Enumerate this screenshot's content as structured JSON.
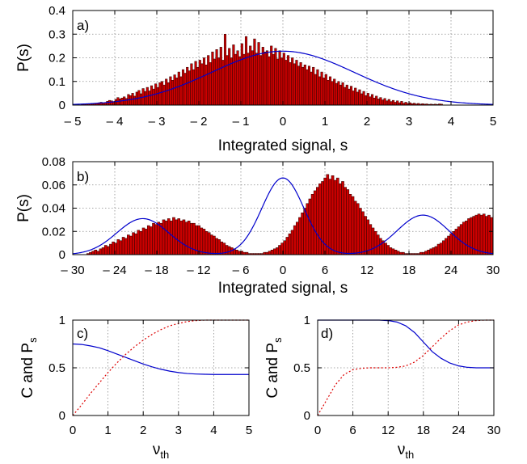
{
  "colors": {
    "bar_fill": "#cc0000",
    "bar_edge": "#2a0000",
    "fit_line": "#0000cc",
    "dotted_line": "#dd0000",
    "grid": "#8c8c8c"
  },
  "chart_data": [
    {
      "panel": "a)",
      "type": "bar",
      "xlabel": "Integrated signal, s",
      "ylabel": "P(s)",
      "xlim": [
        -5,
        5
      ],
      "ylim": [
        0,
        0.4
      ],
      "xticks": [
        -5,
        -4,
        -3,
        -2,
        -1,
        0,
        1,
        2,
        3,
        4,
        5
      ],
      "xtick_labels": [
        "– 5",
        "– 4",
        "– 3",
        "– 2",
        "– 1",
        "0",
        "1",
        "2",
        "3",
        "4",
        "5"
      ],
      "yticks": [
        0,
        0.1,
        0.2,
        0.3,
        0.4
      ],
      "ytick_labels": [
        "0",
        "0.1",
        "0.2",
        "0.3",
        "0.4"
      ],
      "grid": true,
      "bin_width": 0.05,
      "bins_start": -4.8,
      "values": [
        0.004,
        0.005,
        0.004,
        0.006,
        0.005,
        0.004,
        0.007,
        0.008,
        0.01,
        0.012,
        0.009,
        0.011,
        0.016,
        0.02,
        0.018,
        0.015,
        0.024,
        0.032,
        0.026,
        0.03,
        0.035,
        0.028,
        0.045,
        0.04,
        0.05,
        0.038,
        0.055,
        0.062,
        0.048,
        0.07,
        0.058,
        0.075,
        0.06,
        0.082,
        0.068,
        0.09,
        0.075,
        0.095,
        0.1,
        0.085,
        0.11,
        0.095,
        0.12,
        0.105,
        0.128,
        0.115,
        0.14,
        0.12,
        0.15,
        0.135,
        0.16,
        0.145,
        0.175,
        0.15,
        0.185,
        0.16,
        0.19,
        0.175,
        0.2,
        0.17,
        0.21,
        0.18,
        0.225,
        0.195,
        0.235,
        0.2,
        0.245,
        0.19,
        0.3,
        0.21,
        0.24,
        0.2,
        0.255,
        0.215,
        0.23,
        0.205,
        0.26,
        0.215,
        0.29,
        0.22,
        0.25,
        0.23,
        0.28,
        0.22,
        0.265,
        0.21,
        0.245,
        0.225,
        0.23,
        0.205,
        0.25,
        0.215,
        0.24,
        0.195,
        0.23,
        0.2,
        0.22,
        0.19,
        0.21,
        0.18,
        0.2,
        0.175,
        0.19,
        0.165,
        0.18,
        0.16,
        0.17,
        0.15,
        0.165,
        0.14,
        0.16,
        0.13,
        0.15,
        0.12,
        0.14,
        0.115,
        0.13,
        0.105,
        0.12,
        0.1,
        0.11,
        0.092,
        0.1,
        0.085,
        0.095,
        0.075,
        0.085,
        0.068,
        0.08,
        0.06,
        0.072,
        0.055,
        0.065,
        0.048,
        0.058,
        0.04,
        0.05,
        0.035,
        0.045,
        0.03,
        0.038,
        0.026,
        0.032,
        0.022,
        0.028,
        0.018,
        0.024,
        0.015,
        0.02,
        0.012,
        0.018,
        0.01,
        0.016,
        0.008,
        0.012,
        0.007,
        0.01,
        0.006,
        0.008,
        0.005,
        0.007,
        0.004,
        0.006,
        0.004,
        0.005,
        0.003,
        0.004,
        0.003,
        0.004,
        0.003,
        0.005,
        0.004
      ],
      "fit": {
        "components": [
          {
            "mu": 0,
            "sigma": 1.7,
            "amp": 0.228
          }
        ]
      }
    },
    {
      "panel": "b)",
      "type": "bar",
      "xlabel": "Integrated signal, s",
      "ylabel": "P(s)",
      "xlim": [
        -30,
        30
      ],
      "ylim": [
        0,
        0.08
      ],
      "xticks": [
        -30,
        -24,
        -18,
        -12,
        -6,
        0,
        6,
        12,
        18,
        24,
        30
      ],
      "xtick_labels": [
        "– 30",
        "– 24",
        "– 18",
        "– 12",
        "– 6",
        "0",
        "6",
        "12",
        "18",
        "24",
        "30"
      ],
      "yticks": [
        0,
        0.02,
        0.04,
        0.06,
        0.08
      ],
      "ytick_labels": [
        "0",
        "0.02",
        "0.04",
        "0.06",
        "0.08"
      ],
      "grid": true,
      "bin_width": 0.36,
      "bins_start": -28,
      "values": [
        0.001,
        0.002,
        0.003,
        0.004,
        0.003,
        0.005,
        0.006,
        0.008,
        0.007,
        0.009,
        0.011,
        0.01,
        0.013,
        0.012,
        0.015,
        0.014,
        0.017,
        0.016,
        0.019,
        0.018,
        0.021,
        0.02,
        0.023,
        0.022,
        0.025,
        0.024,
        0.027,
        0.026,
        0.028,
        0.027,
        0.03,
        0.029,
        0.031,
        0.029,
        0.032,
        0.03,
        0.031,
        0.029,
        0.03,
        0.028,
        0.029,
        0.027,
        0.027,
        0.025,
        0.025,
        0.023,
        0.022,
        0.02,
        0.019,
        0.017,
        0.016,
        0.014,
        0.013,
        0.011,
        0.01,
        0.008,
        0.007,
        0.006,
        0.005,
        0.004,
        0.003,
        0.003,
        0.002,
        0.002,
        0.001,
        0.001,
        0.001,
        0.001,
        0.001,
        0.001,
        0.002,
        0.002,
        0.003,
        0.004,
        0.005,
        0.006,
        0.008,
        0.01,
        0.012,
        0.015,
        0.018,
        0.021,
        0.025,
        0.028,
        0.032,
        0.036,
        0.04,
        0.044,
        0.048,
        0.052,
        0.055,
        0.058,
        0.061,
        0.063,
        0.066,
        0.069,
        0.065,
        0.068,
        0.064,
        0.066,
        0.061,
        0.063,
        0.058,
        0.056,
        0.052,
        0.05,
        0.046,
        0.044,
        0.04,
        0.037,
        0.033,
        0.03,
        0.026,
        0.023,
        0.02,
        0.017,
        0.014,
        0.012,
        0.01,
        0.008,
        0.006,
        0.005,
        0.004,
        0.003,
        0.002,
        0.002,
        0.001,
        0.001,
        0.001,
        0.001,
        0.001,
        0.001,
        0.002,
        0.002,
        0.003,
        0.004,
        0.005,
        0.006,
        0.007,
        0.009,
        0.01,
        0.012,
        0.014,
        0.016,
        0.018,
        0.02,
        0.022,
        0.024,
        0.026,
        0.028,
        0.029,
        0.031,
        0.032,
        0.033,
        0.034,
        0.035,
        0.034,
        0.035,
        0.033,
        0.034,
        0.032,
        0.033,
        0.031,
        0.03,
        0.029,
        0.027,
        0.026,
        0.024,
        0.022,
        0.021,
        0.019,
        0.017,
        0.015,
        0.013,
        0.011,
        0.01,
        0.008,
        0.007,
        0.005,
        0.004,
        0.003,
        0.002,
        0.002,
        0.001,
        0.001
      ],
      "fit": {
        "components": [
          {
            "mu": -20,
            "sigma": 3.7,
            "amp": 0.031
          },
          {
            "mu": 0,
            "sigma": 3.0,
            "amp": 0.066
          },
          {
            "mu": 20,
            "sigma": 3.7,
            "amp": 0.034
          }
        ]
      }
    },
    {
      "panel": "c)",
      "type": "line",
      "xlabel": "ν",
      "xlabel_sub": "th",
      "ylabel": "C and P",
      "ylabel_sub": "s",
      "xlim": [
        0,
        5
      ],
      "ylim": [
        0,
        1
      ],
      "xticks": [
        0,
        1,
        2,
        3,
        4,
        5
      ],
      "xtick_labels": [
        "0",
        "1",
        "2",
        "3",
        "4",
        "5"
      ],
      "yticks": [
        0,
        0.5,
        1
      ],
      "ytick_labels": [
        "0",
        "0.5",
        "1"
      ],
      "grid": true,
      "x": [
        0,
        0.25,
        0.5,
        0.75,
        1,
        1.25,
        1.5,
        1.75,
        2,
        2.25,
        2.5,
        2.75,
        3,
        3.25,
        3.5,
        3.75,
        4,
        4.25,
        4.5,
        4.75,
        5
      ],
      "series": [
        {
          "style": "solid",
          "color": "#0000cc",
          "values": [
            0.75,
            0.745,
            0.73,
            0.71,
            0.68,
            0.645,
            0.61,
            0.575,
            0.54,
            0.51,
            0.485,
            0.465,
            0.45,
            0.44,
            0.435,
            0.432,
            0.43,
            0.43,
            0.43,
            0.43,
            0.43
          ]
        },
        {
          "style": "dotted",
          "color": "#dd0000",
          "values": [
            0.0,
            0.11,
            0.23,
            0.34,
            0.45,
            0.55,
            0.64,
            0.72,
            0.79,
            0.85,
            0.9,
            0.94,
            0.965,
            0.985,
            0.995,
            1.0,
            1.0,
            1.0,
            1.0,
            1.0,
            1.0
          ]
        }
      ]
    },
    {
      "panel": "d)",
      "type": "line",
      "xlabel": "ν",
      "xlabel_sub": "th",
      "ylabel": "C and P",
      "ylabel_sub": "s",
      "xlim": [
        0,
        30
      ],
      "ylim": [
        0,
        1
      ],
      "xticks": [
        0,
        6,
        12,
        18,
        24,
        30
      ],
      "xtick_labels": [
        "0",
        "6",
        "12",
        "18",
        "24",
        "30"
      ],
      "yticks": [
        0,
        0.5,
        1
      ],
      "ytick_labels": [
        "0",
        "0.5",
        "1"
      ],
      "grid": true,
      "x": [
        0,
        1.5,
        3,
        4.5,
        6,
        7.5,
        9,
        10.5,
        12,
        13.5,
        15,
        16.5,
        18,
        19.5,
        21,
        22.5,
        24,
        25.5,
        27,
        28.5,
        30
      ],
      "series": [
        {
          "style": "solid",
          "color": "#0000cc",
          "values": [
            1.0,
            1.0,
            1.0,
            1.0,
            1.0,
            1.0,
            1.0,
            1.0,
            0.995,
            0.98,
            0.94,
            0.87,
            0.77,
            0.67,
            0.6,
            0.55,
            0.52,
            0.505,
            0.5,
            0.5,
            0.5
          ]
        },
        {
          "style": "dotted",
          "color": "#dd0000",
          "values": [
            0.0,
            0.16,
            0.32,
            0.43,
            0.48,
            0.495,
            0.5,
            0.5,
            0.5,
            0.505,
            0.52,
            0.56,
            0.63,
            0.72,
            0.81,
            0.89,
            0.95,
            0.98,
            0.995,
            1.0,
            1.0
          ]
        }
      ]
    }
  ]
}
